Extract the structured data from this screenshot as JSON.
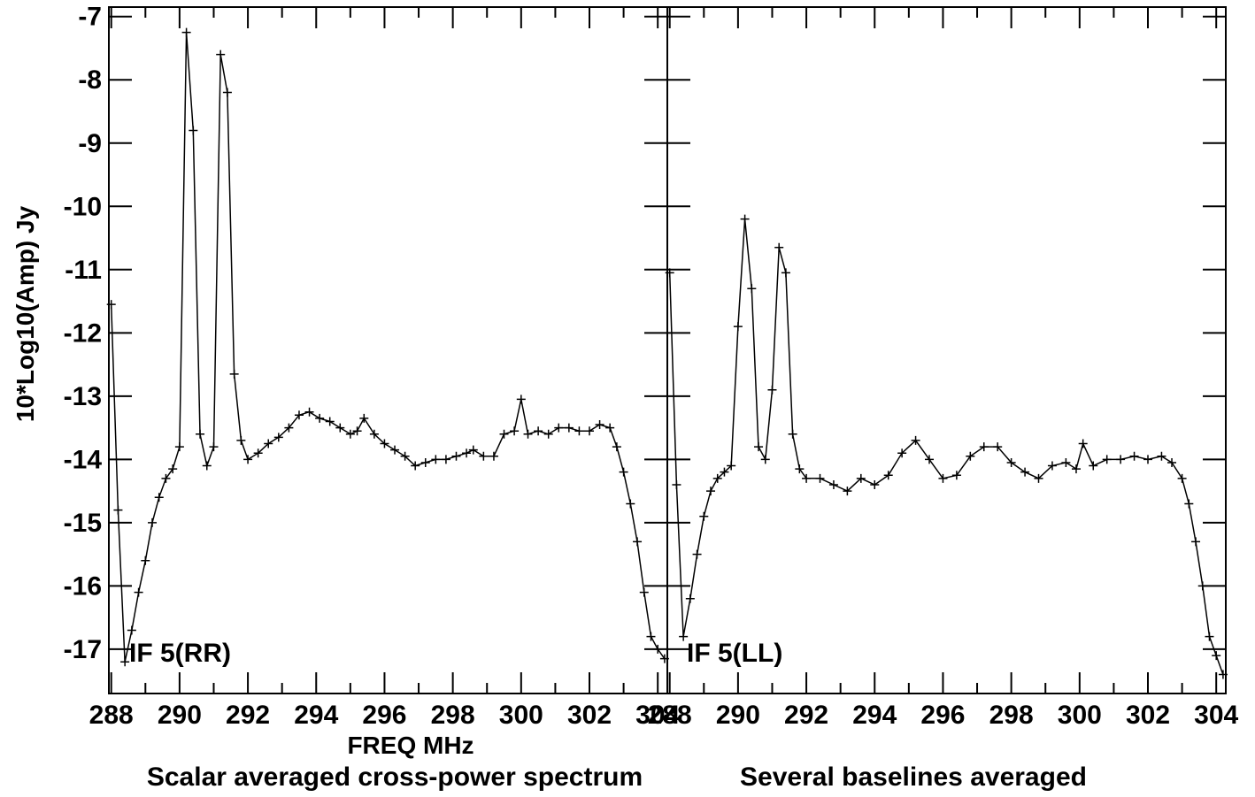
{
  "chart_data": {
    "type": "line",
    "ylabel": "10*Log10(Amp) Jy",
    "xlabel": "FREQ MHz",
    "captions": [
      "Scalar averaged cross-power spectrum",
      "Several baselines averaged"
    ],
    "ylim": [
      -17.7,
      -6.85
    ],
    "yticks": [
      -7,
      -8,
      -9,
      -10,
      -11,
      -12,
      -13,
      -14,
      -15,
      -16,
      -17
    ],
    "xticks": [
      288,
      290,
      292,
      294,
      296,
      298,
      300,
      302,
      304
    ],
    "marker": "plus",
    "line_color": "#000000",
    "panels": [
      {
        "label": "IF 5(RR)",
        "xlim": [
          287.93,
          304.28
        ],
        "x": [
          288.0,
          288.2,
          288.4,
          288.6,
          288.8,
          289.0,
          289.2,
          289.4,
          289.6,
          289.8,
          290.0,
          290.2,
          290.4,
          290.6,
          290.8,
          291.0,
          291.2,
          291.4,
          291.6,
          291.8,
          292.0,
          292.3,
          292.6,
          292.9,
          293.2,
          293.5,
          293.8,
          294.1,
          294.4,
          294.7,
          295.0,
          295.2,
          295.4,
          295.7,
          296.0,
          296.3,
          296.6,
          296.9,
          297.2,
          297.5,
          297.8,
          298.1,
          298.4,
          298.6,
          298.9,
          299.2,
          299.5,
          299.8,
          300.0,
          300.2,
          300.5,
          300.8,
          301.1,
          301.4,
          301.7,
          302.0,
          302.3,
          302.6,
          302.8,
          303.0,
          303.2,
          303.4,
          303.6,
          303.8,
          304.0,
          304.2
        ],
        "y": [
          -11.55,
          -14.8,
          -17.2,
          -16.7,
          -16.1,
          -15.6,
          -15.0,
          -14.6,
          -14.3,
          -14.15,
          -13.8,
          -7.25,
          -8.8,
          -13.6,
          -14.1,
          -13.8,
          -7.6,
          -8.2,
          -12.65,
          -13.7,
          -14.0,
          -13.9,
          -13.75,
          -13.65,
          -13.5,
          -13.3,
          -13.25,
          -13.35,
          -13.4,
          -13.5,
          -13.6,
          -13.55,
          -13.35,
          -13.6,
          -13.75,
          -13.85,
          -13.95,
          -14.1,
          -14.05,
          -14.0,
          -14.0,
          -13.95,
          -13.9,
          -13.85,
          -13.95,
          -13.95,
          -13.6,
          -13.55,
          -13.05,
          -13.6,
          -13.55,
          -13.6,
          -13.5,
          -13.5,
          -13.55,
          -13.55,
          -13.45,
          -13.5,
          -13.8,
          -14.2,
          -14.7,
          -15.3,
          -16.1,
          -16.8,
          -17.0,
          -17.15
        ]
      },
      {
        "label": "IF 5(LL)",
        "xlim": [
          287.93,
          304.28
        ],
        "x": [
          288.0,
          288.2,
          288.4,
          288.6,
          288.8,
          289.0,
          289.2,
          289.4,
          289.6,
          289.8,
          290.0,
          290.2,
          290.4,
          290.6,
          290.8,
          291.0,
          291.2,
          291.4,
          291.6,
          291.8,
          292.0,
          292.4,
          292.8,
          293.2,
          293.6,
          294.0,
          294.4,
          294.8,
          295.2,
          295.6,
          296.0,
          296.4,
          296.8,
          297.2,
          297.6,
          298.0,
          298.4,
          298.8,
          299.2,
          299.6,
          299.9,
          300.1,
          300.4,
          300.8,
          301.2,
          301.6,
          302.0,
          302.4,
          302.7,
          303.0,
          303.2,
          303.4,
          303.6,
          303.8,
          304.0,
          304.2
        ],
        "y": [
          -11.05,
          -14.4,
          -16.8,
          -16.2,
          -15.5,
          -14.9,
          -14.5,
          -14.3,
          -14.2,
          -14.1,
          -11.9,
          -10.2,
          -11.3,
          -13.8,
          -14.0,
          -12.9,
          -10.65,
          -11.05,
          -13.6,
          -14.15,
          -14.3,
          -14.3,
          -14.4,
          -14.5,
          -14.3,
          -14.4,
          -14.25,
          -13.9,
          -13.7,
          -14.0,
          -14.3,
          -14.25,
          -13.95,
          -13.8,
          -13.8,
          -14.05,
          -14.2,
          -14.3,
          -14.1,
          -14.05,
          -14.15,
          -13.75,
          -14.1,
          -14.0,
          -14.0,
          -13.95,
          -14.0,
          -13.95,
          -14.05,
          -14.3,
          -14.7,
          -15.3,
          -16.0,
          -16.8,
          -17.1,
          -17.4
        ]
      }
    ]
  }
}
